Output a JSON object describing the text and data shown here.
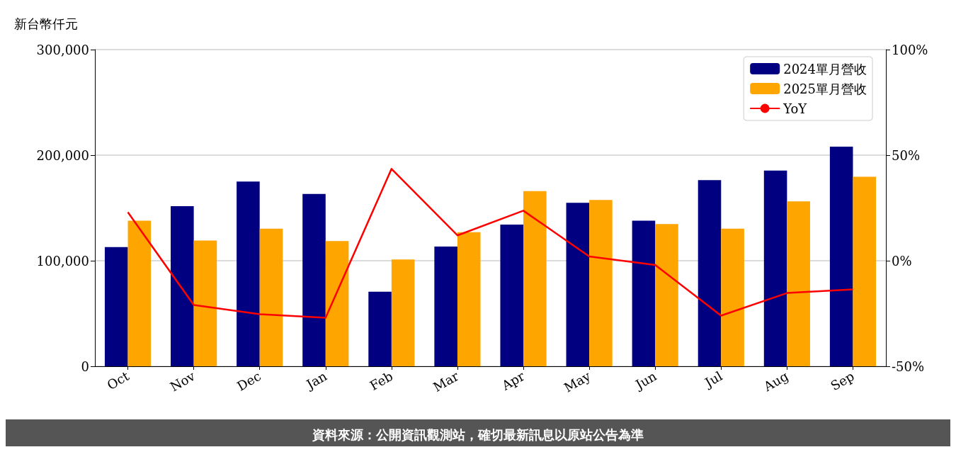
{
  "chart_data": {
    "type": "bar",
    "ylabel": "新台幣仟元",
    "categories": [
      "Oct",
      "Nov",
      "Dec",
      "Jan",
      "Feb",
      "Mar",
      "Apr",
      "May",
      "Jun",
      "Jul",
      "Aug",
      "Sep"
    ],
    "series": [
      {
        "name": "2024單月營收",
        "color": "#000080",
        "values": [
          113000,
          151600,
          175000,
          163300,
          70600,
          113400,
          134200,
          154900,
          138000,
          176300,
          185400,
          208000
        ]
      },
      {
        "name": "2025單月營收",
        "color": "#ffa500",
        "values": [
          138000,
          119200,
          130300,
          118600,
          101100,
          127000,
          165900,
          157500,
          134800,
          130300,
          156200,
          179500
        ]
      },
      {
        "name": "YoY",
        "type": "line",
        "axis": "y2",
        "color": "#ff0000",
        "values": [
          23,
          -21,
          -25.3,
          -27,
          43.5,
          12,
          23.7,
          2,
          -2,
          -26,
          -15.3,
          -13.6
        ]
      }
    ],
    "ylim": [
      0,
      300000
    ],
    "yticks": [
      {
        "value": 0,
        "label": "0"
      },
      {
        "value": 100000,
        "label": "100,000"
      },
      {
        "value": 200000,
        "label": "200,000"
      },
      {
        "value": 300000,
        "label": "300,000"
      }
    ],
    "y2lim": [
      -50,
      100
    ],
    "y2ticks": [
      {
        "value": -50,
        "label": "-50%"
      },
      {
        "value": 0,
        "label": "0%"
      },
      {
        "value": 50,
        "label": "50%"
      },
      {
        "value": 100,
        "label": "100%"
      }
    ],
    "grid": "y",
    "legend": "top right",
    "marker": "none",
    "line_style": "solid",
    "annotations": [
      "資料來源：公開資訊觀測站，確切最新訊息以原站公告為準"
    ]
  }
}
